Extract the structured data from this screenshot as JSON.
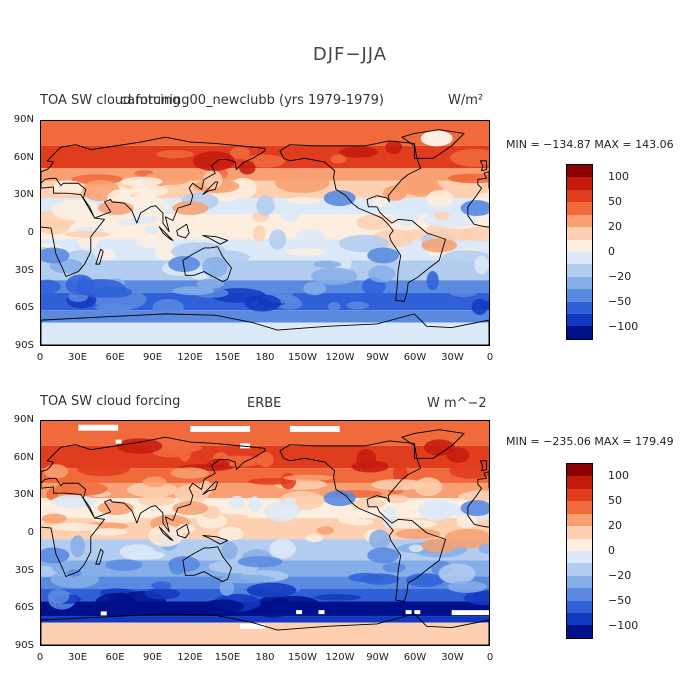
{
  "figure_title": "DJF−JJA",
  "panels": [
    {
      "left_title": "TOA SW cloud forcing",
      "center_title": "camtuning00_newclubb (yrs 1979-1979)",
      "right_title": "W/m²",
      "min_max": "MIN = −134.87 MAX = 143.06"
    },
    {
      "left_title": "TOA SW cloud forcing",
      "center_title": "ERBE",
      "right_title": "W m^−2",
      "min_max": "MIN = −235.06 MAX = 179.49"
    }
  ],
  "lat_labels": [
    "90N",
    "60N",
    "30N",
    "0",
    "30S",
    "60S",
    "90S"
  ],
  "lon_labels": [
    "0",
    "30E",
    "60E",
    "90E",
    "120E",
    "150E",
    "180",
    "150W",
    "120W",
    "90W",
    "60W",
    "30W",
    "0"
  ],
  "colorbar": {
    "tick_labels": [
      "100",
      "50",
      "20",
      "0",
      "−20",
      "−50",
      "−100"
    ],
    "colors": [
      "#8b0000",
      "#c41a0e",
      "#e03c1e",
      "#f06a3c",
      "#f8a071",
      "#fcd0b0",
      "#fdeee0",
      "#dce9f8",
      "#b3cdf0",
      "#86aee8",
      "#5a8ae0",
      "#2f60d8",
      "#1038c0",
      "#00108a"
    ]
  }
}
